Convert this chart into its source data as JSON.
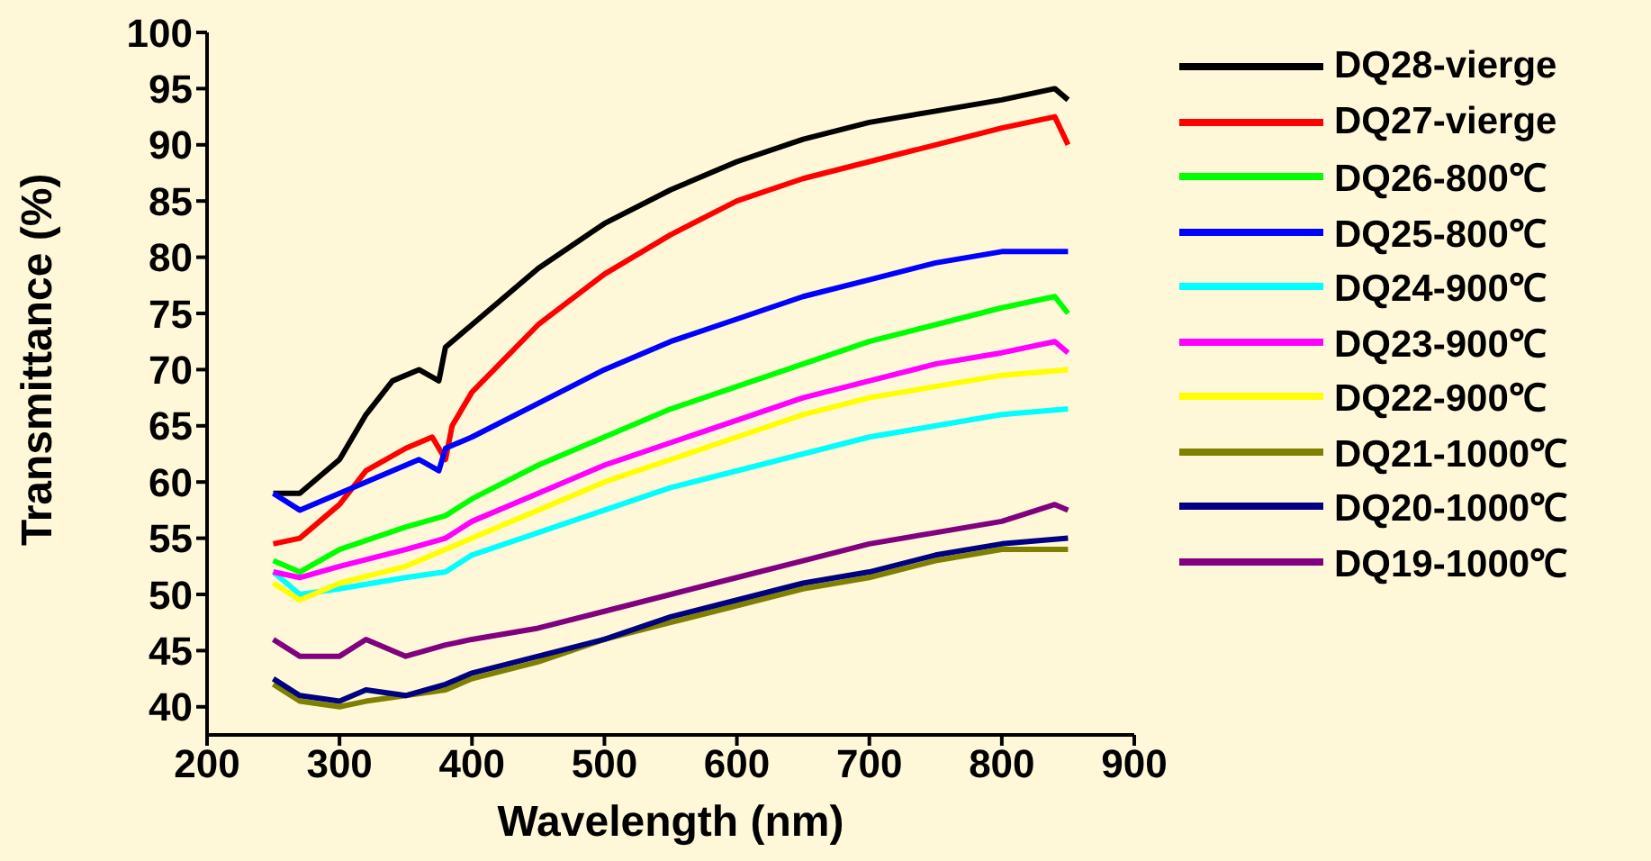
{
  "chart_data": {
    "type": "line",
    "xlabel": "Wavelength (nm)",
    "ylabel": "Transmittance (%)",
    "xlim": [
      200,
      900
    ],
    "xticks": [
      200,
      300,
      400,
      500,
      600,
      700,
      800,
      900
    ],
    "ylim": [
      37.5,
      100
    ],
    "yticks": [
      40,
      45,
      50,
      55,
      60,
      65,
      70,
      75,
      80,
      85,
      90,
      95,
      100
    ],
    "legend": "right",
    "series": [
      {
        "name": "DQ28-vierge",
        "color": "#000000",
        "x": [
          250,
          270,
          300,
          320,
          340,
          360,
          375,
          380,
          400,
          450,
          500,
          550,
          600,
          650,
          700,
          750,
          800,
          840,
          850
        ],
        "values": [
          59,
          59,
          62,
          66,
          69,
          70,
          69,
          72,
          74,
          79,
          83,
          86,
          88.5,
          90.5,
          92,
          93,
          94,
          95,
          94
        ]
      },
      {
        "name": "DQ27-vierge",
        "color": "#ff0000",
        "x": [
          250,
          270,
          300,
          320,
          350,
          370,
          380,
          385,
          400,
          450,
          500,
          550,
          600,
          650,
          700,
          750,
          800,
          840,
          850
        ],
        "values": [
          54.5,
          55,
          58,
          61,
          63,
          64,
          62,
          65,
          68,
          74,
          78.5,
          82,
          85,
          87,
          88.5,
          90,
          91.5,
          92.5,
          90
        ]
      },
      {
        "name": "DQ26-800℃",
        "color": "#00ff00",
        "x": [
          250,
          270,
          300,
          350,
          380,
          400,
          450,
          500,
          550,
          600,
          650,
          700,
          750,
          800,
          840,
          850
        ],
        "values": [
          53,
          52,
          54,
          56,
          57,
          58.5,
          61.5,
          64,
          66.5,
          68.5,
          70.5,
          72.5,
          74,
          75.5,
          76.5,
          75
        ]
      },
      {
        "name": "DQ25-800℃",
        "color": "#0000ff",
        "x": [
          250,
          270,
          300,
          330,
          360,
          375,
          380,
          400,
          450,
          500,
          550,
          600,
          650,
          700,
          750,
          800,
          850
        ],
        "values": [
          59,
          57.5,
          59,
          60.5,
          62,
          61,
          63,
          64,
          67,
          70,
          72.5,
          74.5,
          76.5,
          78,
          79.5,
          80.5,
          80.5
        ]
      },
      {
        "name": "DQ24-900℃",
        "color": "#00ffff",
        "x": [
          250,
          270,
          300,
          350,
          380,
          400,
          450,
          500,
          550,
          600,
          650,
          700,
          750,
          800,
          850
        ],
        "values": [
          52,
          50,
          50.5,
          51.5,
          52,
          53.5,
          55.5,
          57.5,
          59.5,
          61,
          62.5,
          64,
          65,
          66,
          66.5
        ]
      },
      {
        "name": "DQ23-900℃",
        "color": "#ff00ff",
        "x": [
          250,
          270,
          300,
          350,
          380,
          400,
          450,
          500,
          550,
          600,
          650,
          700,
          750,
          800,
          840,
          850
        ],
        "values": [
          52,
          51.5,
          52.5,
          54,
          55,
          56.5,
          59,
          61.5,
          63.5,
          65.5,
          67.5,
          69,
          70.5,
          71.5,
          72.5,
          71.5
        ]
      },
      {
        "name": "DQ22-900℃",
        "color": "#ffff00",
        "x": [
          250,
          270,
          300,
          350,
          380,
          400,
          450,
          500,
          550,
          600,
          650,
          700,
          750,
          800,
          850
        ],
        "values": [
          51,
          49.5,
          51,
          52.5,
          54,
          55,
          57.5,
          60,
          62,
          64,
          66,
          67.5,
          68.5,
          69.5,
          70
        ]
      },
      {
        "name": "DQ21-1000℃",
        "color": "#808000",
        "x": [
          250,
          270,
          300,
          320,
          350,
          380,
          400,
          450,
          500,
          550,
          600,
          650,
          700,
          750,
          800,
          850
        ],
        "values": [
          42,
          40.5,
          40,
          40.5,
          41,
          41.5,
          42.5,
          44,
          46,
          47.5,
          49,
          50.5,
          51.5,
          53,
          54,
          54
        ]
      },
      {
        "name": "DQ20-1000℃",
        "color": "#000080",
        "x": [
          250,
          270,
          300,
          320,
          350,
          380,
          400,
          450,
          500,
          550,
          600,
          650,
          700,
          750,
          800,
          850
        ],
        "values": [
          42.5,
          41,
          40.5,
          41.5,
          41,
          42,
          43,
          44.5,
          46,
          48,
          49.5,
          51,
          52,
          53.5,
          54.5,
          55
        ]
      },
      {
        "name": "DQ19-1000℃",
        "color": "#800080",
        "x": [
          250,
          270,
          300,
          320,
          350,
          380,
          400,
          450,
          500,
          550,
          600,
          650,
          700,
          750,
          800,
          840,
          850
        ],
        "values": [
          46,
          44.5,
          44.5,
          46,
          44.5,
          45.5,
          46,
          47,
          48.5,
          50,
          51.5,
          53,
          54.5,
          55.5,
          56.5,
          58,
          57.5
        ]
      }
    ]
  }
}
